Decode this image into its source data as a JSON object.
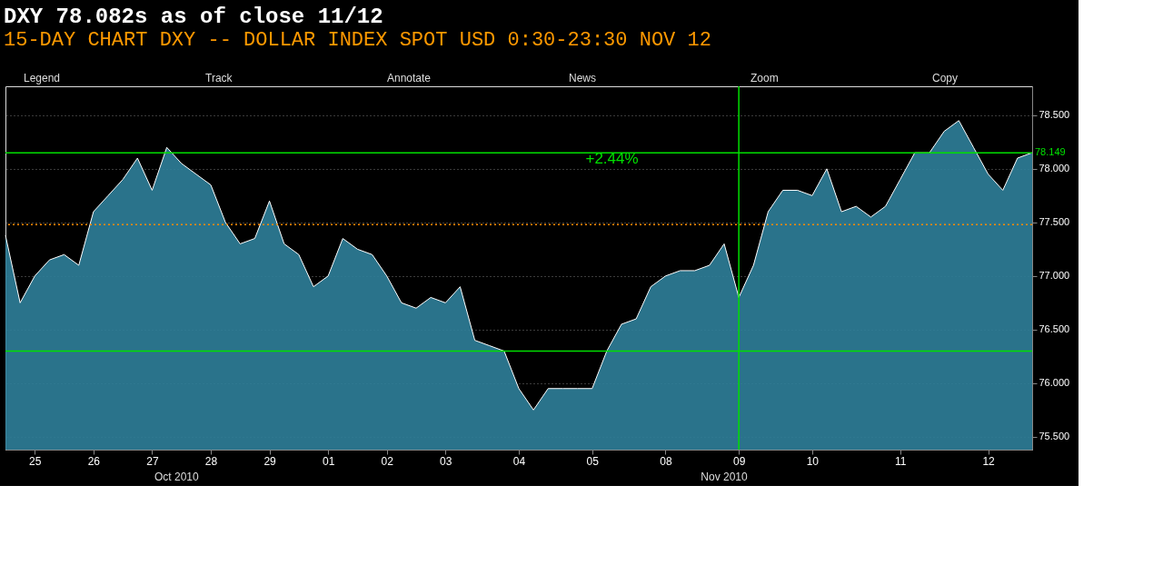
{
  "chart_data": {
    "type": "area",
    "title": "DXY 78.082s as of close 11/12",
    "subtitle": "15-DAY CHART DXY -- DOLLAR INDEX SPOT USD 0:30-23:30 NOV 12",
    "categories": [
      null,
      null,
      "25",
      null,
      null,
      null,
      "26",
      null,
      null,
      null,
      "27",
      null,
      null,
      null,
      "28",
      null,
      null,
      null,
      "29",
      null,
      null,
      null,
      "01",
      null,
      null,
      null,
      "02",
      null,
      null,
      null,
      "03",
      null,
      null,
      null,
      null,
      "04",
      null,
      null,
      null,
      null,
      "05",
      null,
      null,
      null,
      null,
      "08",
      null,
      null,
      null,
      null,
      "09",
      null,
      null,
      null,
      null,
      "10",
      null,
      null,
      null,
      null,
      null,
      "11",
      null,
      null,
      null,
      null,
      null,
      "12",
      null,
      null,
      null
    ],
    "series": [
      {
        "color": "#2f7f9a",
        "values": [
          77.38,
          76.75,
          77.0,
          77.15,
          77.2,
          77.1,
          77.6,
          77.75,
          77.9,
          78.1,
          77.8,
          78.2,
          78.05,
          77.95,
          77.85,
          77.5,
          77.3,
          77.35,
          77.7,
          77.3,
          77.2,
          76.9,
          77.0,
          77.35,
          77.25,
          77.2,
          77.0,
          76.75,
          76.7,
          76.8,
          76.75,
          76.9,
          76.4,
          76.35,
          76.3,
          75.95,
          75.75,
          75.95,
          75.95,
          75.95,
          75.95,
          76.3,
          76.55,
          76.6,
          76.9,
          77.0,
          77.05,
          77.05,
          77.1,
          77.3,
          76.8,
          77.1,
          77.6,
          77.8,
          77.8,
          77.75,
          78.0,
          77.6,
          77.65,
          77.55,
          77.65,
          77.9,
          78.15,
          78.15,
          78.35,
          78.45,
          78.2,
          77.95,
          77.8,
          78.1,
          78.15
        ]
      }
    ],
    "ylim": [
      75.38,
      78.77
    ],
    "yticks": [
      {
        "value": 75.5,
        "label": "75.500"
      },
      {
        "value": 76,
        "label": "76.000"
      },
      {
        "value": 76.5,
        "label": "76.500"
      },
      {
        "value": 77,
        "label": "77.000"
      },
      {
        "value": 77.5,
        "label": "77.500"
      },
      {
        "value": 78,
        "label": "78.000"
      },
      {
        "value": 78.5,
        "label": "78.500"
      }
    ],
    "grid": "y",
    "ref_lines": [
      {
        "axis": "y",
        "value": 78.149,
        "label": "78.149",
        "color": "#00e000"
      },
      {
        "axis": "y",
        "value": 76.3,
        "color": "#00e000"
      },
      {
        "axis": "y",
        "value": 77.48,
        "color": "#ff8c00",
        "line_style": "dotted"
      },
      {
        "axis": "x",
        "value": "09",
        "color": "#00e000"
      }
    ],
    "annotations": [
      "Legend",
      "Track",
      "Annotate",
      "News",
      "Zoom",
      "Copy",
      "Oct 2010",
      "Nov 2010",
      "+2.44%"
    ]
  }
}
